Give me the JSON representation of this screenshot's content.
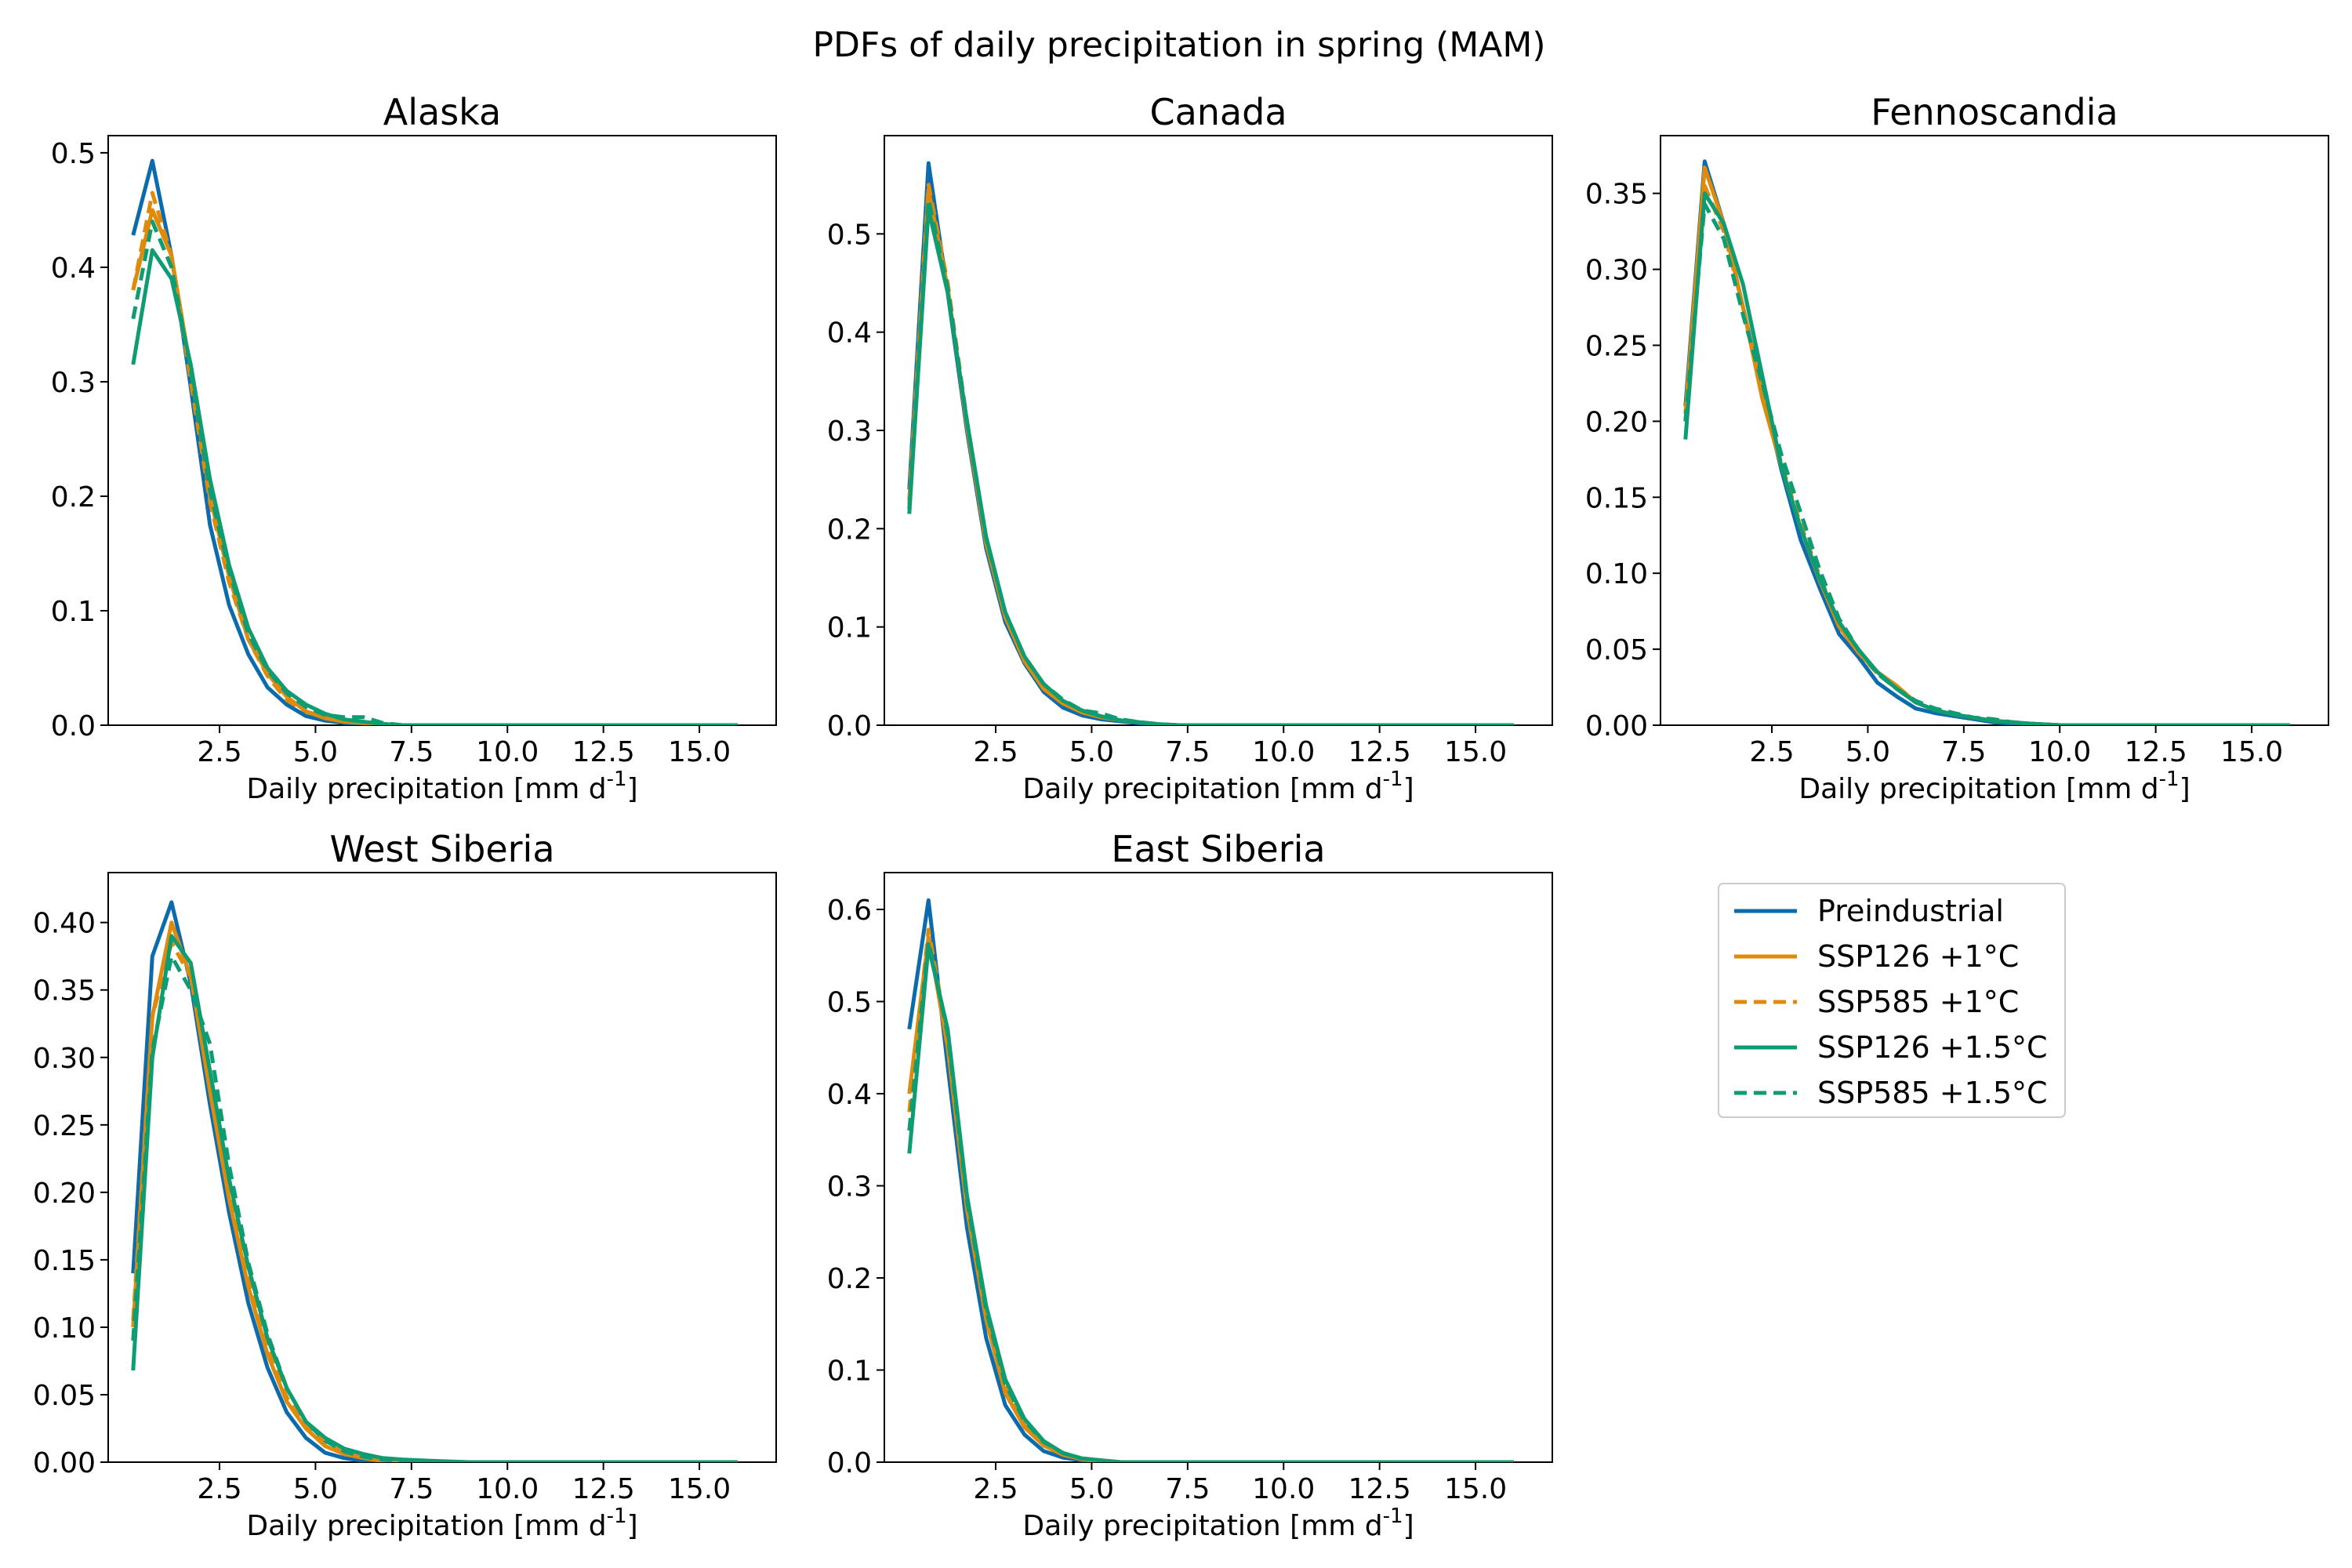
{
  "figure": {
    "title": "PDFs of daily precipitation in spring (MAM)"
  },
  "legend": {
    "placement": "empty lower-right panel",
    "entries": [
      {
        "label": "Preindustrial",
        "color": "#0b6bac",
        "dash": "solid"
      },
      {
        "label": "SSP126 +1°C",
        "color": "#e08a0b",
        "dash": "solid"
      },
      {
        "label": "SSP585 +1°C",
        "color": "#e08a0b",
        "dash": "dashed"
      },
      {
        "label": "SSP126 +1.5°C",
        "color": "#0e9c73",
        "dash": "solid"
      },
      {
        "label": "SSP585 +1.5°C",
        "color": "#0e9c73",
        "dash": "dashed"
      }
    ]
  },
  "chart_data": [
    {
      "type": "line",
      "title": "Alaska",
      "xlabel": "Daily precipitation [mm d$^{-1}$]",
      "xlim": [
        -0.4,
        17.0
      ],
      "ylim": [
        0,
        0.515
      ],
      "xticks": [
        "2.5",
        "5.0",
        "7.5",
        "10.0",
        "12.5",
        "15.0"
      ],
      "yticks": [
        "0.0",
        "0.1",
        "0.2",
        "0.3",
        "0.4",
        "0.5"
      ],
      "x": [
        0.25,
        0.75,
        1.25,
        1.75,
        2.25,
        2.75,
        3.25,
        3.75,
        4.25,
        4.75,
        5.25,
        5.75,
        6.25,
        6.75,
        7.25,
        8.0,
        9.0,
        10.0,
        11.0,
        12.0,
        13.0,
        14.0,
        15.0,
        16.0
      ],
      "series": [
        {
          "name": "Preindustrial",
          "values": [
            0.428,
            0.493,
            0.41,
            0.295,
            0.175,
            0.105,
            0.062,
            0.033,
            0.018,
            0.008,
            0.004,
            0.002,
            0.001,
            0.0005,
            0.0,
            0.0,
            0.0,
            0.0,
            0.0,
            0.0,
            0.0,
            0.0,
            0.0,
            0.0
          ]
        },
        {
          "name": "SSP126 +1°C",
          "values": [
            0.38,
            0.45,
            0.41,
            0.31,
            0.2,
            0.13,
            0.075,
            0.045,
            0.025,
            0.012,
            0.006,
            0.003,
            0.002,
            0.001,
            0.0,
            0.0,
            0.0,
            0.0,
            0.0,
            0.0,
            0.0,
            0.0,
            0.0,
            0.0
          ]
        },
        {
          "name": "SSP585 +1°C",
          "values": [
            0.38,
            0.465,
            0.41,
            0.3,
            0.195,
            0.125,
            0.075,
            0.043,
            0.022,
            0.012,
            0.007,
            0.004,
            0.002,
            0.001,
            0.0,
            0.0,
            0.0,
            0.0,
            0.0,
            0.0,
            0.0,
            0.0,
            0.0,
            0.0
          ]
        },
        {
          "name": "SSP126 +1.5°C",
          "values": [
            0.315,
            0.415,
            0.39,
            0.315,
            0.215,
            0.14,
            0.085,
            0.05,
            0.03,
            0.018,
            0.01,
            0.005,
            0.003,
            0.001,
            0.0,
            0.0,
            0.0,
            0.0,
            0.0,
            0.0,
            0.0,
            0.0,
            0.0,
            0.0
          ]
        },
        {
          "name": "SSP585 +1.5°C",
          "values": [
            0.355,
            0.44,
            0.4,
            0.31,
            0.205,
            0.135,
            0.08,
            0.048,
            0.028,
            0.016,
            0.009,
            0.007,
            0.007,
            0.002,
            0.0,
            0.0,
            0.0,
            0.0,
            0.0,
            0.0,
            0.0,
            0.0,
            0.0,
            0.0
          ]
        }
      ]
    },
    {
      "type": "line",
      "title": "Canada",
      "xlabel": "Daily precipitation [mm d$^{-1}$]",
      "xlim": [
        -0.4,
        17.0
      ],
      "ylim": [
        0,
        0.6
      ],
      "xticks": [
        "2.5",
        "5.0",
        "7.5",
        "10.0",
        "12.5",
        "15.0"
      ],
      "yticks": [
        "0.0",
        "0.1",
        "0.2",
        "0.3",
        "0.4",
        "0.5"
      ],
      "x": [
        0.25,
        0.75,
        1.25,
        1.75,
        2.25,
        2.75,
        3.25,
        3.75,
        4.25,
        4.75,
        5.25,
        5.75,
        6.25,
        6.75,
        7.25,
        8.0,
        9.0,
        10.0,
        11.0,
        12.0,
        13.0,
        14.0,
        15.0,
        16.0
      ],
      "series": [
        {
          "name": "Preindustrial",
          "values": [
            0.24,
            0.572,
            0.44,
            0.3,
            0.18,
            0.105,
            0.063,
            0.034,
            0.018,
            0.01,
            0.006,
            0.004,
            0.002,
            0.001,
            0.0,
            0.0,
            0.0,
            0.0,
            0.0,
            0.0,
            0.0,
            0.0,
            0.0,
            0.0
          ]
        },
        {
          "name": "SSP126 +1°C",
          "values": [
            0.225,
            0.545,
            0.445,
            0.305,
            0.185,
            0.11,
            0.065,
            0.037,
            0.022,
            0.013,
            0.008,
            0.005,
            0.003,
            0.001,
            0.0,
            0.0,
            0.0,
            0.0,
            0.0,
            0.0,
            0.0,
            0.0,
            0.0,
            0.0
          ]
        },
        {
          "name": "SSP585 +1°C",
          "values": [
            0.23,
            0.55,
            0.45,
            0.31,
            0.188,
            0.112,
            0.068,
            0.04,
            0.024,
            0.014,
            0.009,
            0.005,
            0.003,
            0.001,
            0.0,
            0.0,
            0.0,
            0.0,
            0.0,
            0.0,
            0.0,
            0.0,
            0.0,
            0.0
          ]
        },
        {
          "name": "SSP126 +1.5°C",
          "values": [
            0.215,
            0.525,
            0.44,
            0.31,
            0.192,
            0.115,
            0.07,
            0.042,
            0.025,
            0.015,
            0.009,
            0.005,
            0.003,
            0.001,
            0.0,
            0.0,
            0.0,
            0.0,
            0.0,
            0.0,
            0.0,
            0.0,
            0.0,
            0.0
          ]
        },
        {
          "name": "SSP585 +1.5°C",
          "values": [
            0.22,
            0.535,
            0.445,
            0.31,
            0.19,
            0.115,
            0.07,
            0.042,
            0.026,
            0.015,
            0.012,
            0.006,
            0.003,
            0.001,
            0.0,
            0.0,
            0.0,
            0.0,
            0.0,
            0.0,
            0.0,
            0.0,
            0.0,
            0.0
          ]
        }
      ]
    },
    {
      "type": "line",
      "title": "Fennoscandia",
      "xlabel": "Daily precipitation [mm d$^{-1}$]",
      "xlim": [
        -0.4,
        17.0
      ],
      "ylim": [
        0,
        0.388
      ],
      "xticks": [
        "2.5",
        "5.0",
        "7.5",
        "10.0",
        "12.5",
        "15.0"
      ],
      "yticks": [
        "0.00",
        "0.05",
        "0.10",
        "0.15",
        "0.20",
        "0.25",
        "0.30",
        "0.35"
      ],
      "x": [
        0.25,
        0.75,
        1.25,
        1.75,
        2.25,
        2.75,
        3.25,
        3.75,
        4.25,
        4.75,
        5.25,
        5.75,
        6.25,
        6.75,
        7.25,
        7.75,
        8.25,
        8.75,
        9.25,
        10.0,
        11.0,
        12.0,
        13.0,
        14.0,
        15.0,
        16.0
      ],
      "series": [
        {
          "name": "Preindustrial",
          "values": [
            0.21,
            0.371,
            0.33,
            0.275,
            0.22,
            0.168,
            0.122,
            0.09,
            0.06,
            0.045,
            0.028,
            0.019,
            0.011,
            0.008,
            0.006,
            0.004,
            0.002,
            0.001,
            0.001,
            0.0,
            0.0,
            0.0,
            0.0,
            0.0,
            0.0,
            0.0
          ]
        },
        {
          "name": "SSP126 +1°C",
          "values": [
            0.205,
            0.367,
            0.33,
            0.275,
            0.215,
            0.17,
            0.13,
            0.095,
            0.065,
            0.048,
            0.035,
            0.026,
            0.015,
            0.01,
            0.007,
            0.005,
            0.003,
            0.002,
            0.001,
            0.0,
            0.0,
            0.0,
            0.0,
            0.0,
            0.0,
            0.0
          ]
        },
        {
          "name": "SSP585 +1°C",
          "values": [
            0.2,
            0.355,
            0.325,
            0.275,
            0.22,
            0.172,
            0.132,
            0.098,
            0.067,
            0.048,
            0.034,
            0.024,
            0.015,
            0.01,
            0.007,
            0.005,
            0.003,
            0.002,
            0.001,
            0.0,
            0.0,
            0.0,
            0.0,
            0.0,
            0.0,
            0.0
          ]
        },
        {
          "name": "SSP126 +1.5°C",
          "values": [
            0.188,
            0.35,
            0.33,
            0.29,
            0.23,
            0.17,
            0.13,
            0.096,
            0.068,
            0.05,
            0.035,
            0.024,
            0.015,
            0.01,
            0.007,
            0.005,
            0.003,
            0.002,
            0.001,
            0.0,
            0.0,
            0.0,
            0.0,
            0.0,
            0.0,
            0.0
          ]
        },
        {
          "name": "SSP585 +1.5°C",
          "values": [
            0.2,
            0.343,
            0.32,
            0.27,
            0.225,
            0.178,
            0.14,
            0.102,
            0.07,
            0.05,
            0.034,
            0.024,
            0.016,
            0.011,
            0.008,
            0.005,
            0.004,
            0.002,
            0.001,
            0.0,
            0.0,
            0.0,
            0.0,
            0.0,
            0.0,
            0.0
          ]
        }
      ]
    },
    {
      "type": "line",
      "title": "West Siberia",
      "xlabel": "Daily precipitation [mm d$^{-1}$]",
      "xlim": [
        -0.4,
        17.0
      ],
      "ylim": [
        0,
        0.437
      ],
      "xticks": [
        "2.5",
        "5.0",
        "7.5",
        "10.0",
        "12.5",
        "15.0"
      ],
      "yticks": [
        "0.00",
        "0.05",
        "0.10",
        "0.15",
        "0.20",
        "0.25",
        "0.30",
        "0.35",
        "0.40"
      ],
      "x": [
        0.25,
        0.75,
        1.25,
        1.75,
        2.25,
        2.75,
        3.25,
        3.75,
        4.25,
        4.75,
        5.25,
        5.75,
        6.25,
        6.75,
        7.25,
        8.0,
        9.0,
        10.0,
        11.0,
        12.0,
        13.0,
        14.0,
        15.0,
        16.0
      ],
      "series": [
        {
          "name": "Preindustrial",
          "values": [
            0.14,
            0.375,
            0.415,
            0.355,
            0.265,
            0.185,
            0.118,
            0.07,
            0.037,
            0.018,
            0.007,
            0.003,
            0.001,
            0.0,
            0.0,
            0.0,
            0.0,
            0.0,
            0.0,
            0.0,
            0.0,
            0.0,
            0.0,
            0.0
          ]
        },
        {
          "name": "SSP126 +1°C",
          "values": [
            0.1,
            0.33,
            0.4,
            0.36,
            0.275,
            0.195,
            0.13,
            0.08,
            0.045,
            0.025,
            0.012,
            0.006,
            0.003,
            0.001,
            0.0,
            0.0,
            0.0,
            0.0,
            0.0,
            0.0,
            0.0,
            0.0,
            0.0,
            0.0
          ]
        },
        {
          "name": "SSP585 +1°C",
          "values": [
            0.105,
            0.33,
            0.385,
            0.36,
            0.285,
            0.2,
            0.135,
            0.085,
            0.048,
            0.027,
            0.014,
            0.007,
            0.003,
            0.001,
            0.0,
            0.0,
            0.0,
            0.0,
            0.0,
            0.0,
            0.0,
            0.0,
            0.0,
            0.0
          ]
        },
        {
          "name": "SSP126 +1.5°C",
          "values": [
            0.068,
            0.3,
            0.39,
            0.37,
            0.29,
            0.21,
            0.145,
            0.092,
            0.055,
            0.03,
            0.018,
            0.01,
            0.006,
            0.003,
            0.002,
            0.001,
            0.0,
            0.0,
            0.0,
            0.0,
            0.0,
            0.0,
            0.0,
            0.0
          ]
        },
        {
          "name": "SSP585 +1.5°C",
          "values": [
            0.09,
            0.305,
            0.375,
            0.35,
            0.31,
            0.22,
            0.148,
            0.095,
            0.055,
            0.03,
            0.016,
            0.008,
            0.004,
            0.002,
            0.0,
            0.0,
            0.0,
            0.0,
            0.0,
            0.0,
            0.0,
            0.0,
            0.0,
            0.0
          ]
        }
      ]
    },
    {
      "type": "line",
      "title": "East Siberia",
      "xlabel": "Daily precipitation [mm d$^{-1}$]",
      "xlim": [
        -0.4,
        17.0
      ],
      "ylim": [
        0,
        0.64
      ],
      "xticks": [
        "2.5",
        "5.0",
        "7.5",
        "10.0",
        "12.5",
        "15.0"
      ],
      "yticks": [
        "0.0",
        "0.1",
        "0.2",
        "0.3",
        "0.4",
        "0.5",
        "0.6"
      ],
      "x": [
        0.25,
        0.75,
        1.25,
        1.75,
        2.25,
        2.75,
        3.25,
        3.75,
        4.25,
        4.75,
        5.25,
        5.75,
        6.25,
        6.75,
        7.25,
        8.0,
        9.0,
        10.0,
        11.0,
        12.0,
        13.0,
        14.0,
        15.0,
        16.0
      ],
      "series": [
        {
          "name": "Preindustrial",
          "values": [
            0.47,
            0.61,
            0.43,
            0.255,
            0.135,
            0.062,
            0.03,
            0.012,
            0.005,
            0.002,
            0.001,
            0.0,
            0.0,
            0.0,
            0.0,
            0.0,
            0.0,
            0.0,
            0.0,
            0.0,
            0.0,
            0.0,
            0.0,
            0.0
          ]
        },
        {
          "name": "SSP126 +1°C",
          "values": [
            0.4,
            0.57,
            0.45,
            0.275,
            0.155,
            0.075,
            0.038,
            0.018,
            0.008,
            0.003,
            0.001,
            0.0,
            0.0,
            0.0,
            0.0,
            0.0,
            0.0,
            0.0,
            0.0,
            0.0,
            0.0,
            0.0,
            0.0,
            0.0
          ]
        },
        {
          "name": "SSP585 +1°C",
          "values": [
            0.38,
            0.578,
            0.46,
            0.28,
            0.16,
            0.08,
            0.04,
            0.02,
            0.009,
            0.004,
            0.002,
            0.0,
            0.0,
            0.0,
            0.0,
            0.0,
            0.0,
            0.0,
            0.0,
            0.0,
            0.0,
            0.0,
            0.0,
            0.0
          ]
        },
        {
          "name": "SSP126 +1.5°C",
          "values": [
            0.335,
            0.56,
            0.47,
            0.29,
            0.17,
            0.09,
            0.047,
            0.023,
            0.01,
            0.004,
            0.002,
            0.0,
            0.0,
            0.0,
            0.0,
            0.0,
            0.0,
            0.0,
            0.0,
            0.0,
            0.0,
            0.0,
            0.0,
            0.0
          ]
        },
        {
          "name": "SSP585 +1.5°C",
          "values": [
            0.36,
            0.565,
            0.465,
            0.285,
            0.165,
            0.085,
            0.045,
            0.022,
            0.01,
            0.004,
            0.002,
            0.0,
            0.0,
            0.0,
            0.0,
            0.0,
            0.0,
            0.0,
            0.0,
            0.0,
            0.0,
            0.0,
            0.0,
            0.0
          ]
        }
      ]
    }
  ]
}
